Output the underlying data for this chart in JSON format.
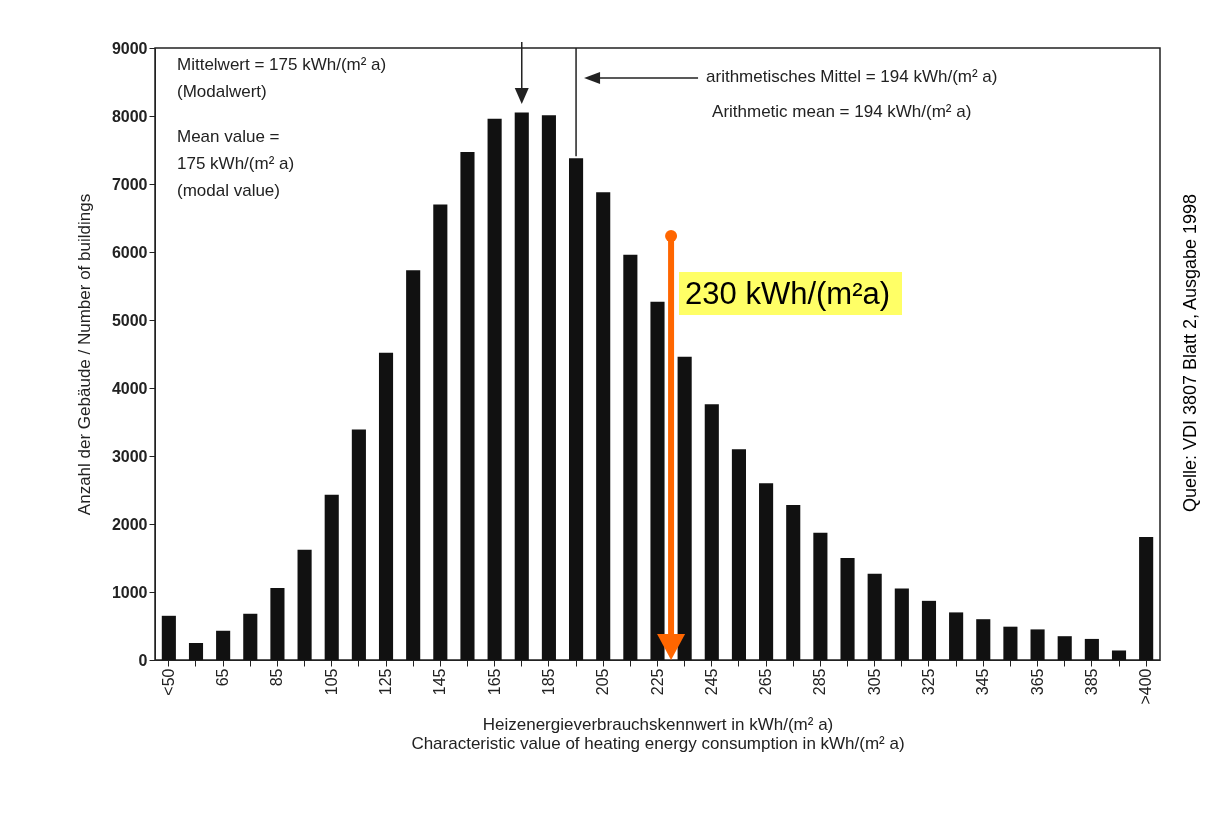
{
  "chart_data": {
    "type": "bar",
    "xlabel": "Heizenergieverbrauchskennwert  in kWh/(m² a)\nCharacteristic value of heating energy consumption in kWh/(m² a)",
    "ylabel": "Anzahl der Gebäude  /  Number of buildings",
    "categories": [
      "<50",
      null,
      "65",
      null,
      "85",
      null,
      "105",
      null,
      "125",
      null,
      "145",
      null,
      "165",
      null,
      "185",
      null,
      "205",
      null,
      "225",
      null,
      "245",
      null,
      "265",
      null,
      "285",
      null,
      "305",
      null,
      "325",
      null,
      "345",
      null,
      "365",
      null,
      "385",
      null,
      ">400"
    ],
    "values": [
      650,
      250,
      430,
      680,
      1060,
      1620,
      2430,
      3390,
      4520,
      5730,
      6700,
      7470,
      7960,
      8050,
      8010,
      7380,
      6880,
      5960,
      5270,
      4460,
      3760,
      3100,
      2600,
      2280,
      1870,
      1500,
      1270,
      1050,
      870,
      700,
      600,
      490,
      450,
      350,
      310,
      140,
      1810
    ],
    "color": "#111111",
    "ylim": [
      0,
      9000
    ],
    "yticks": [
      0,
      1000,
      2000,
      3000,
      4000,
      5000,
      6000,
      7000,
      8000,
      9000
    ],
    "grid": false,
    "annotations": [
      "Mittelwert = 175 kWh/(m² a)",
      "(Modalwert)",
      "Mean value =",
      "175 kWh/(m² a)",
      "(modal value)",
      "arithmetisches Mittel = 194 kWh/(m² a)",
      "Arithmetic mean = 194 kWh/(m² a)",
      "230 kWh/(m²a)",
      "Quelle: VDI 3807 Blatt 2, Ausgabe 1998"
    ]
  }
}
